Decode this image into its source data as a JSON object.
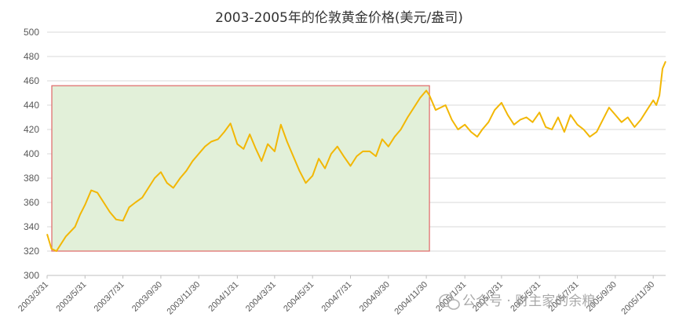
{
  "chart_data": {
    "type": "line",
    "title": "2003-2005年的伦敦黄金价格(美元/盎司)",
    "xlabel": "",
    "ylabel": "",
    "ylim": [
      300,
      500
    ],
    "yticks": [
      300,
      320,
      340,
      360,
      380,
      400,
      420,
      440,
      460,
      480,
      500
    ],
    "x_ticklabels": [
      "2003/3/31",
      "2003/5/31",
      "2003/7/31",
      "2003/9/30",
      "2003/11/30",
      "2004/1/31",
      "2004/3/31",
      "2004/5/31",
      "2004/7/31",
      "2004/9/30",
      "2004/11/30",
      "2005/1/31",
      "2005/3/31",
      "2005/5/31",
      "2005/7/31",
      "2005/9/30",
      "2005/11/30"
    ],
    "grid": true,
    "legend": "none",
    "line_color": "#F2B705",
    "highlight": {
      "from": "2003/3/31",
      "to": "2004/11/30",
      "fill_color": "#E2F0D9",
      "border_color": "#E06666"
    },
    "series": [
      {
        "x": [
          "2003/3/31",
          "2003/4/7",
          "2003/4/15",
          "2003/4/30",
          "2003/5/15",
          "2003/5/23",
          "2003/5/31",
          "2003/6/10",
          "2003/6/20",
          "2003/6/30",
          "2003/7/10",
          "2003/7/20",
          "2003/7/31",
          "2003/8/10",
          "2003/8/20",
          "2003/8/31",
          "2003/9/10",
          "2003/9/20",
          "2003/9/30",
          "2003/10/10",
          "2003/10/20",
          "2003/10/31",
          "2003/11/10",
          "2003/11/20",
          "2003/11/30",
          "2003/12/10",
          "2003/12/20",
          "2003/12/31",
          "2004/1/10",
          "2004/1/20",
          "2004/1/31",
          "2004/2/10",
          "2004/2/20",
          "2004/2/29",
          "2004/3/10",
          "2004/3/20",
          "2004/3/31",
          "2004/4/10",
          "2004/4/20",
          "2004/4/30",
          "2004/5/10",
          "2004/5/20",
          "2004/5/31",
          "2004/6/10",
          "2004/6/20",
          "2004/6/30",
          "2004/7/10",
          "2004/7/20",
          "2004/7/31",
          "2004/8/10",
          "2004/8/20",
          "2004/8/31",
          "2004/9/10",
          "2004/9/20",
          "2004/9/30",
          "2004/10/10",
          "2004/10/20",
          "2004/10/31",
          "2004/11/10",
          "2004/11/20",
          "2004/11/30",
          "2004/12/5",
          "2004/12/15",
          "2004/12/31",
          "2005/1/10",
          "2005/1/20",
          "2005/1/31",
          "2005/2/10",
          "2005/2/20",
          "2005/2/28",
          "2005/3/10",
          "2005/3/20",
          "2005/3/31",
          "2005/4/10",
          "2005/4/20",
          "2005/4/30",
          "2005/5/10",
          "2005/5/20",
          "2005/5/31",
          "2005/6/10",
          "2005/6/20",
          "2005/6/30",
          "2005/7/10",
          "2005/7/20",
          "2005/7/31",
          "2005/8/10",
          "2005/8/20",
          "2005/8/31",
          "2005/9/10",
          "2005/9/20",
          "2005/9/30",
          "2005/10/10",
          "2005/10/20",
          "2005/10/31",
          "2005/11/10",
          "2005/11/20",
          "2005/11/30",
          "2005/12/5",
          "2005/12/10",
          "2005/12/15",
          "2005/12/20"
        ],
        "values": [
          334,
          322,
          320,
          332,
          340,
          350,
          358,
          370,
          368,
          360,
          352,
          346,
          345,
          356,
          360,
          364,
          372,
          380,
          385,
          376,
          372,
          380,
          386,
          394,
          400,
          406,
          410,
          412,
          418,
          425,
          408,
          404,
          416,
          405,
          394,
          408,
          402,
          424,
          410,
          398,
          386,
          376,
          382,
          396,
          388,
          400,
          406,
          398,
          390,
          398,
          402,
          402,
          398,
          412,
          406,
          414,
          420,
          430,
          438,
          446,
          452,
          448,
          436,
          440,
          428,
          420,
          424,
          418,
          414,
          420,
          426,
          436,
          442,
          432,
          424,
          428,
          430,
          426,
          434,
          422,
          420,
          430,
          418,
          432,
          424,
          420,
          414,
          418,
          428,
          438,
          432,
          426,
          430,
          422,
          428,
          436,
          444,
          440,
          448,
          470,
          476
        ]
      }
    ]
  },
  "watermark": {
    "text": "公众号 · 财主家的余粮",
    "icon": "wechat-icon"
  }
}
